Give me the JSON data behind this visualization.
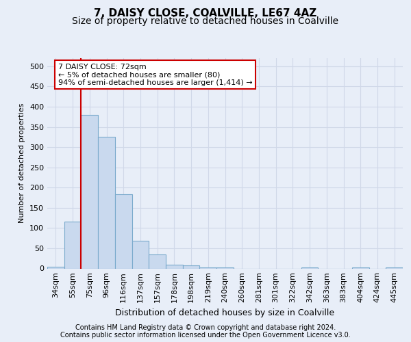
{
  "title": "7, DAISY CLOSE, COALVILLE, LE67 4AZ",
  "subtitle": "Size of property relative to detached houses in Coalville",
  "xlabel": "Distribution of detached houses by size in Coalville",
  "ylabel": "Number of detached properties",
  "footer_line1": "Contains HM Land Registry data © Crown copyright and database right 2024.",
  "footer_line2": "Contains public sector information licensed under the Open Government Licence v3.0.",
  "categories": [
    "34sqm",
    "55sqm",
    "75sqm",
    "96sqm",
    "116sqm",
    "137sqm",
    "157sqm",
    "178sqm",
    "198sqm",
    "219sqm",
    "240sqm",
    "260sqm",
    "281sqm",
    "301sqm",
    "322sqm",
    "342sqm",
    "363sqm",
    "383sqm",
    "404sqm",
    "424sqm",
    "445sqm"
  ],
  "values": [
    5,
    115,
    380,
    325,
    183,
    68,
    35,
    10,
    7,
    3,
    3,
    0,
    0,
    0,
    0,
    3,
    0,
    0,
    3,
    0,
    3
  ],
  "bar_color": "#c9d9ee",
  "bar_edge_color": "#7aaacc",
  "vline_position": 1.5,
  "vline_color": "#cc0000",
  "annotation_line1": "7 DAISY CLOSE: 72sqm",
  "annotation_line2": "← 5% of detached houses are smaller (80)",
  "annotation_line3": "94% of semi-detached houses are larger (1,414) →",
  "ylim_max": 520,
  "yticks": [
    0,
    50,
    100,
    150,
    200,
    250,
    300,
    350,
    400,
    450,
    500
  ],
  "background_color": "#e8eef8",
  "grid_color": "#d0d8e8",
  "title_fontsize": 11,
  "subtitle_fontsize": 10,
  "ylabel_fontsize": 8,
  "xlabel_fontsize": 9,
  "tick_fontsize": 8,
  "annotation_fontsize": 8,
  "footer_fontsize": 7
}
